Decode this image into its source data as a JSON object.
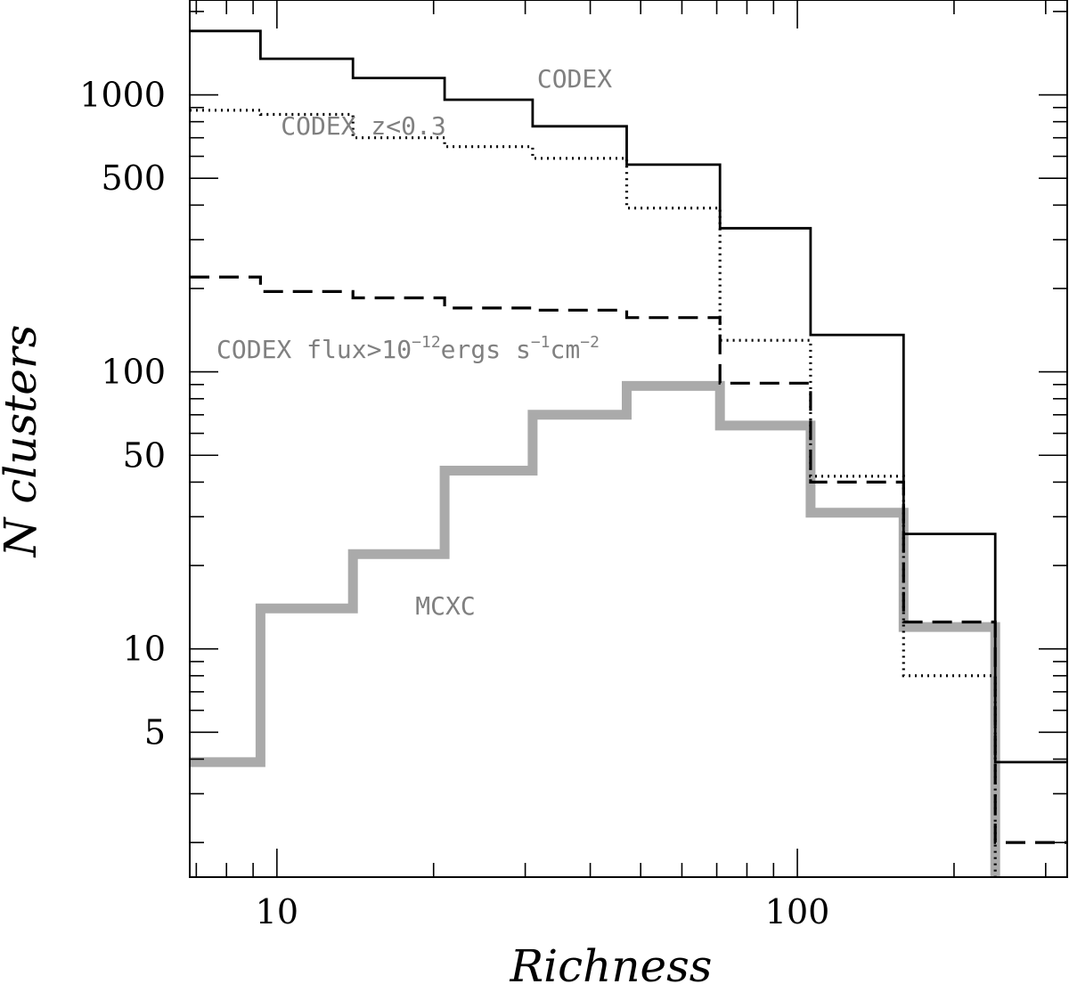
{
  "chart_data": {
    "type": "line",
    "subtype": "step-histogram",
    "xlabel": "Richness",
    "ylabel": "N clusters",
    "x_scale": "log",
    "y_scale": "log",
    "xlim": [
      6.8,
      330
    ],
    "ylim": [
      1.5,
      2200
    ],
    "x_ticks": [
      10,
      100
    ],
    "x_tick_labels": [
      "10",
      "100"
    ],
    "y_ticks": [
      5,
      10,
      50,
      100,
      500,
      1000
    ],
    "y_tick_labels": [
      "5",
      "10",
      "50",
      "100",
      "500",
      "1000"
    ],
    "bin_edges": [
      6.8,
      9.3,
      14,
      21,
      31,
      47,
      71,
      106,
      160,
      240,
      330
    ],
    "series": [
      {
        "name": "CODEX",
        "style": "solid",
        "color": "#000000",
        "values": [
          1700,
          1350,
          1150,
          960,
          770,
          560,
          330,
          136,
          26,
          3.9
        ],
        "label": "CODEX"
      },
      {
        "name": "CODEX z<0.3",
        "style": "dotted",
        "color": "#000000",
        "values": [
          880,
          850,
          700,
          650,
          590,
          390,
          130,
          42,
          8,
          0.5
        ],
        "label": "CODEX z<0.3"
      },
      {
        "name": "CODEX flux>10^-12 ergs s^-1 cm^-2",
        "style": "dashed",
        "color": "#000000",
        "values": [
          220,
          195,
          185,
          170,
          167,
          157,
          91,
          40,
          12.5,
          2.0
        ],
        "label_parts": [
          "CODEX flux>10",
          "−12",
          "ergs s",
          "−1",
          "cm",
          "−2"
        ]
      },
      {
        "name": "MCXC",
        "style": "thick",
        "color": "#aaaaaa",
        "values": [
          3.9,
          14,
          22,
          44,
          70,
          89,
          64,
          31,
          12,
          0.5
        ],
        "label": "MCXC"
      }
    ]
  }
}
